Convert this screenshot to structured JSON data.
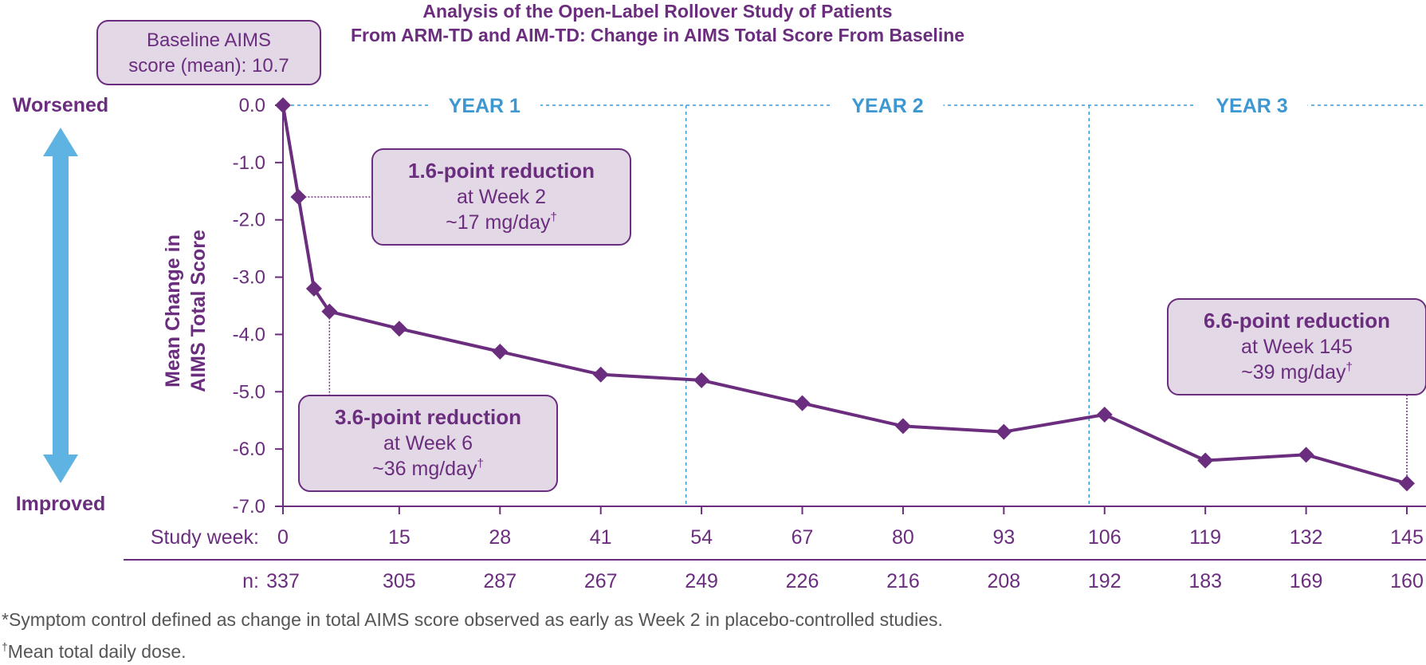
{
  "chart_data": {
    "type": "line",
    "title": "Analysis of the Open-Label Rollover Study of Patients",
    "subtitle": "From ARM-TD and AIM-TD: Change in AIMS Total Score From Baseline",
    "ylabel_line1": "Mean Change in",
    "ylabel_line2": "AIMS Total Score",
    "xlabel": "Study week:",
    "n_label": "n:",
    "ylim": [
      -7.0,
      0.0
    ],
    "y_ticks": [
      0.0,
      -1.0,
      -2.0,
      -3.0,
      -4.0,
      -5.0,
      -6.0,
      -7.0
    ],
    "y_tick_labels": [
      "0.0",
      "-1.0",
      "-2.0",
      "-3.0",
      "-4.0",
      "-5.0",
      "-6.0",
      "-7.0"
    ],
    "xlim": [
      0,
      145
    ],
    "x_ticks": [
      0,
      15,
      28,
      41,
      54,
      67,
      80,
      93,
      106,
      119,
      132,
      145
    ],
    "x_tick_labels": [
      "0",
      "15",
      "28",
      "41",
      "54",
      "67",
      "80",
      "93",
      "106",
      "119",
      "132",
      "145"
    ],
    "n_values": [
      "337",
      "305",
      "287",
      "267",
      "249",
      "226",
      "216",
      "208",
      "192",
      "183",
      "169",
      "160"
    ],
    "series": [
      {
        "name": "Mean change in AIMS total score",
        "x": [
          0,
          2,
          4,
          6,
          15,
          28,
          41,
          54,
          67,
          80,
          93,
          106,
          119,
          132,
          145
        ],
        "y": [
          0.0,
          -1.6,
          -3.2,
          -3.6,
          -3.9,
          -4.3,
          -4.7,
          -4.8,
          -5.2,
          -5.6,
          -5.7,
          -5.4,
          -6.2,
          -6.1,
          -6.6
        ]
      }
    ],
    "year_dividers": [
      52,
      104
    ],
    "year_labels": [
      {
        "label": "YEAR 1",
        "x": 26
      },
      {
        "label": "YEAR 2",
        "x": 78
      },
      {
        "label": "YEAR 3",
        "x": 125
      }
    ],
    "direction_labels": {
      "top": "Worsened",
      "bottom": "Improved"
    },
    "baseline_box": {
      "line1": "Baseline AIMS",
      "line2": "score (mean): 10.7"
    },
    "annotations": [
      {
        "title": "1.6-point reduction",
        "line2": "at Week 2",
        "line3": "~17 mg/day",
        "mark": "†",
        "week": 2,
        "value": -1.6
      },
      {
        "title": "3.6-point reduction",
        "line2": "at Week 6",
        "line3": "~36 mg/day",
        "mark": "†",
        "week": 6,
        "value": -3.6
      },
      {
        "title": "6.6-point reduction",
        "line2": "at Week 145",
        "line3": "~39 mg/day",
        "mark": "†",
        "week": 145,
        "value": -6.6
      }
    ],
    "footnotes": [
      "*Symptom control defined as change in total AIMS score observed as early as Week 2 in placebo-controlled studies.",
      "Mean total daily dose."
    ],
    "footnote_mark": "†",
    "colors": {
      "series": "#6b2d7e",
      "text": "#6b2d7e",
      "year": "#3d97d1",
      "arrow": "#5fb3e3",
      "box_fill": "#e3d8e6",
      "box_stroke": "#6b2d7e",
      "footnote": "#555555"
    }
  }
}
